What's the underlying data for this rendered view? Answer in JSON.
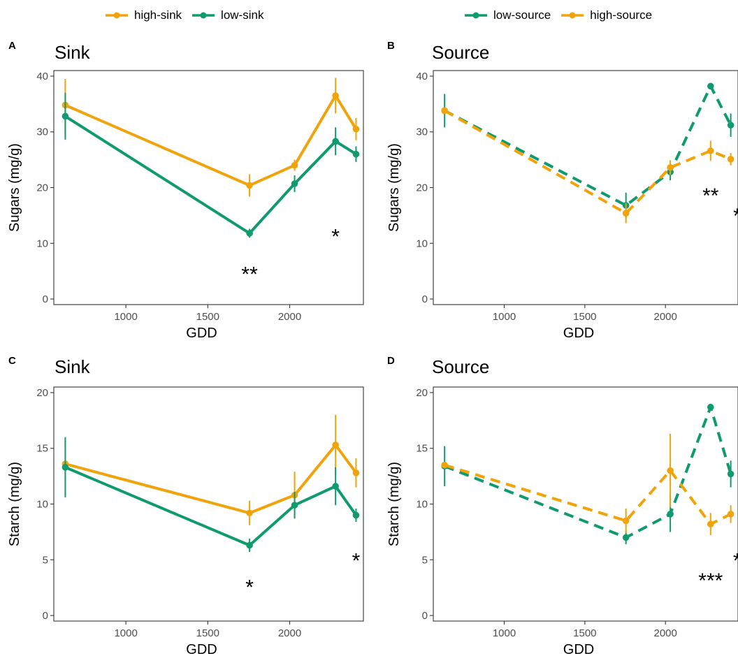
{
  "colors": {
    "high": "#F0A30A",
    "low": "#109A6F"
  },
  "legends": [
    {
      "items": [
        {
          "label": "high-sink",
          "color": "#F0A30A"
        },
        {
          "label": "low-sink",
          "color": "#109A6F"
        }
      ]
    },
    {
      "items": [
        {
          "label": "low-source",
          "color": "#109A6F"
        },
        {
          "label": "high-source",
          "color": "#F0A30A"
        }
      ]
    }
  ],
  "chart_data": [
    {
      "panel": "A",
      "title": "Sink",
      "type": "line",
      "linestyle": "solid",
      "xlabel": "GDD",
      "ylabel": "Sugars (mg/g)",
      "xlim": [
        560,
        2450
      ],
      "ylim": [
        -1,
        41
      ],
      "xticks": [
        1000,
        1500,
        2000
      ],
      "yticks": [
        0,
        10,
        20,
        30,
        40
      ],
      "grid": false,
      "series": [
        {
          "name": "high-sink",
          "color": "#F0A30A",
          "x": [
            630,
            1755,
            2030,
            2280,
            2405
          ],
          "y": [
            34.8,
            20.4,
            24.0,
            36.5,
            30.5
          ],
          "err": [
            4.7,
            2.0,
            1.0,
            3.2,
            2.0
          ]
        },
        {
          "name": "low-sink",
          "color": "#109A6F",
          "x": [
            630,
            1755,
            2030,
            2280,
            2405
          ],
          "y": [
            32.8,
            11.8,
            20.7,
            28.3,
            26.0
          ],
          "err": [
            4.2,
            0.8,
            1.5,
            2.5,
            1.4
          ]
        }
      ],
      "annotations": [
        {
          "text": "**",
          "x": 1755,
          "y": 3.2
        },
        {
          "text": "*",
          "x": 2280,
          "y": 10.0
        }
      ]
    },
    {
      "panel": "B",
      "title": "Source",
      "type": "line",
      "linestyle": "dashed",
      "xlabel": "GDD",
      "ylabel": "Sugars (mg/g)",
      "xlim": [
        560,
        2450
      ],
      "ylim": [
        -1,
        41
      ],
      "xticks": [
        1000,
        1500,
        2000
      ],
      "yticks": [
        0,
        10,
        20,
        30,
        40
      ],
      "grid": false,
      "series": [
        {
          "name": "low-source",
          "color": "#109A6F",
          "x": [
            630,
            1755,
            2030,
            2280,
            2405
          ],
          "y": [
            33.8,
            16.8,
            22.8,
            38.2,
            31.2
          ],
          "err": [
            3.0,
            2.3,
            1.5,
            0.4,
            2.1
          ]
        },
        {
          "name": "high-source",
          "color": "#F0A30A",
          "x": [
            630,
            1755,
            2030,
            2280,
            2405
          ],
          "y": [
            33.8,
            15.4,
            23.6,
            26.6,
            25.1
          ],
          "err": [
            0.5,
            1.8,
            1.3,
            1.8,
            1.1
          ]
        }
      ],
      "annotations": [
        {
          "text": "**",
          "x": 2280,
          "y": 17.3
        },
        {
          "text": "*",
          "x": 2445,
          "y": 13.7
        }
      ]
    },
    {
      "panel": "C",
      "title": "Sink",
      "type": "line",
      "linestyle": "solid",
      "xlabel": "GDD",
      "ylabel": "Starch (mg/g)",
      "xlim": [
        560,
        2450
      ],
      "ylim": [
        -0.5,
        20.5
      ],
      "xticks": [
        1000,
        1500,
        2000
      ],
      "yticks": [
        0,
        5,
        10,
        15,
        20
      ],
      "grid": false,
      "series": [
        {
          "name": "high-sink",
          "color": "#F0A30A",
          "x": [
            630,
            1755,
            2030,
            2280,
            2405
          ],
          "y": [
            13.6,
            9.2,
            10.8,
            15.3,
            12.8
          ],
          "err": [
            0.3,
            1.1,
            2.1,
            2.7,
            1.3
          ]
        },
        {
          "name": "low-sink",
          "color": "#109A6F",
          "x": [
            630,
            1755,
            2030,
            2280,
            2405
          ],
          "y": [
            13.3,
            6.3,
            9.9,
            11.6,
            9.0
          ],
          "err": [
            2.7,
            0.6,
            1.2,
            1.7,
            0.6
          ]
        }
      ],
      "annotations": [
        {
          "text": "*",
          "x": 1755,
          "y": 1.9
        },
        {
          "text": "*",
          "x": 2405,
          "y": 4.3
        }
      ]
    },
    {
      "panel": "D",
      "title": "Source",
      "type": "line",
      "linestyle": "dashed",
      "xlabel": "GDD",
      "ylabel": "Starch (mg/g)",
      "xlim": [
        560,
        2450
      ],
      "ylim": [
        -0.5,
        20.5
      ],
      "xticks": [
        1000,
        1500,
        2000
      ],
      "yticks": [
        0,
        5,
        10,
        15,
        20
      ],
      "grid": false,
      "series": [
        {
          "name": "low-source",
          "color": "#109A6F",
          "x": [
            630,
            1755,
            2030,
            2280,
            2405
          ],
          "y": [
            13.4,
            7.0,
            9.1,
            18.7,
            12.7
          ],
          "err": [
            1.8,
            0.6,
            1.6,
            0.2,
            1.2
          ]
        },
        {
          "name": "high-source",
          "color": "#F0A30A",
          "x": [
            630,
            1755,
            2030,
            2280,
            2405
          ],
          "y": [
            13.5,
            8.5,
            13.0,
            8.2,
            9.1
          ],
          "err": [
            0.2,
            1.1,
            3.3,
            1.0,
            0.8
          ]
        }
      ],
      "annotations": [
        {
          "text": "***",
          "x": 2280,
          "y": 2.5
        },
        {
          "text": "*",
          "x": 2445,
          "y": 4.3
        }
      ]
    }
  ]
}
